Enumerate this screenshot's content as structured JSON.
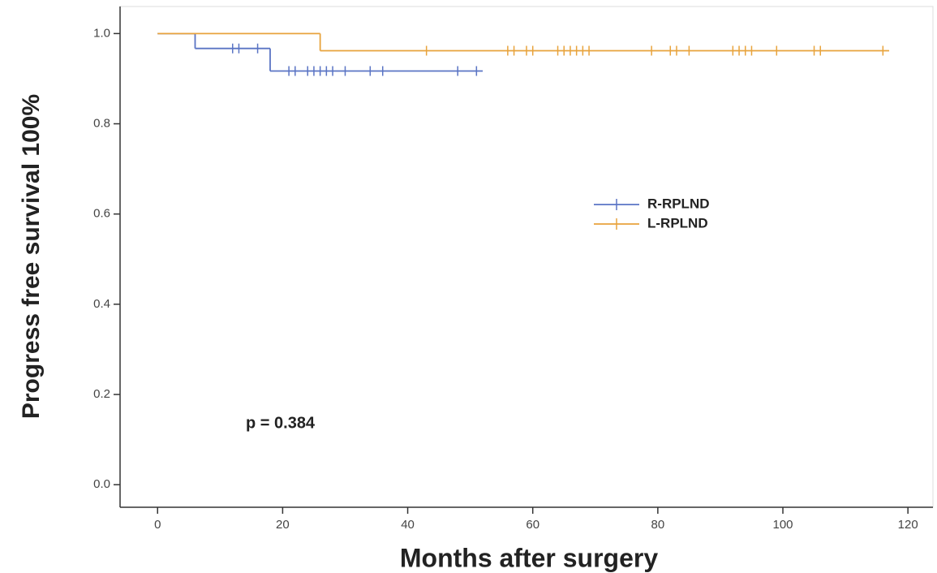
{
  "chart_data": {
    "type": "step",
    "x_label": "Months after surgery",
    "y_label": "Progress free survival 100%",
    "annotation": "p = 0.384",
    "xlim": [
      -6,
      124
    ],
    "xticks": [
      0,
      20,
      40,
      60,
      80,
      100,
      120
    ],
    "ylim": [
      -0.05,
      1.06
    ],
    "yticks": [
      {
        "value": 0,
        "label": "0.0"
      },
      {
        "value": 0.2,
        "label": "0.2"
      },
      {
        "value": 0.4,
        "label": "0.4"
      },
      {
        "value": 0.6,
        "label": "0.6"
      },
      {
        "value": 0.8,
        "label": "0.8"
      },
      {
        "value": 1,
        "label": "1.0"
      }
    ],
    "series": [
      {
        "name": "R-RPLND",
        "color": "#5a74c4",
        "x": [
          0,
          6,
          18,
          52
        ],
        "values": [
          1.0,
          0.967,
          0.917,
          0.917
        ],
        "censor_x": [
          12,
          13,
          16,
          21,
          22,
          24,
          25,
          26,
          27,
          28,
          30,
          34,
          36,
          48,
          51
        ],
        "censor_values": [
          0.967,
          0.967,
          0.967,
          0.917,
          0.917,
          0.917,
          0.917,
          0.917,
          0.917,
          0.917,
          0.917,
          0.917,
          0.917,
          0.917,
          0.917
        ]
      },
      {
        "name": "L-RPLND",
        "color": "#e8a33c",
        "x": [
          0,
          26,
          117
        ],
        "values": [
          1.0,
          0.962,
          0.962
        ],
        "censor_x": [
          43,
          56,
          57,
          59,
          60,
          64,
          65,
          66,
          67,
          68,
          69,
          79,
          82,
          83,
          85,
          92,
          93,
          94,
          95,
          99,
          105,
          106,
          116
        ],
        "censor_values": [
          0.962,
          0.962,
          0.962,
          0.962,
          0.962,
          0.962,
          0.962,
          0.962,
          0.962,
          0.962,
          0.962,
          0.962,
          0.962,
          0.962,
          0.962,
          0.962,
          0.962,
          0.962,
          0.962,
          0.962,
          0.962,
          0.962,
          0.962
        ]
      }
    ]
  }
}
